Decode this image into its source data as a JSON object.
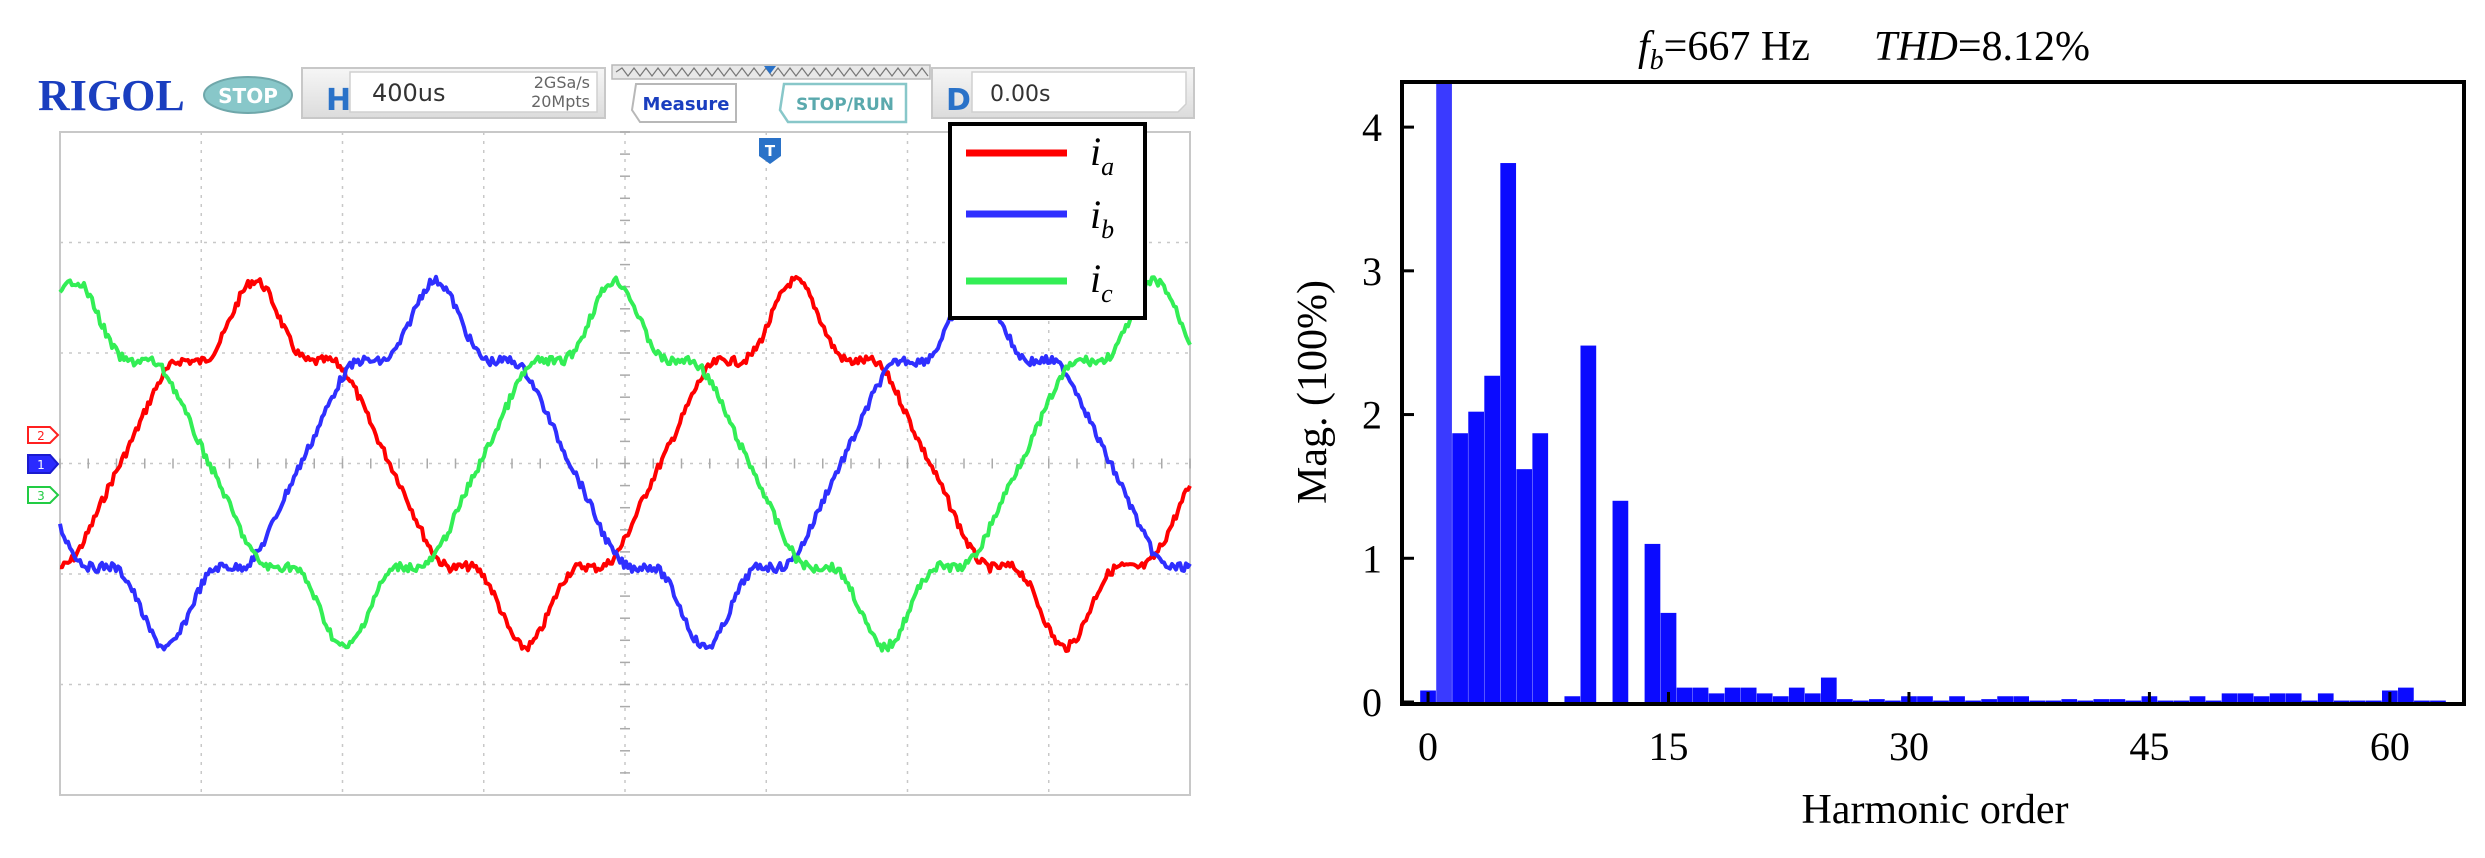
{
  "scope": {
    "brand": "RIGOL",
    "run_state": "STOP",
    "h_label": "H",
    "timebase": "400us",
    "sample_rate": "2GSa/s",
    "memory_depth": "20Mpts",
    "measure_label": "Measure",
    "stoprun_label": "STOP/RUN",
    "d_label": "D",
    "delay": "0.00s",
    "trigger_marker": "T",
    "channel_markers": [
      "2",
      "1",
      "3"
    ],
    "legend": [
      {
        "name": "i",
        "sub": "a",
        "color": "#ff0000"
      },
      {
        "name": "i",
        "sub": "b",
        "color": "#2f2fff"
      },
      {
        "name": "i",
        "sub": "c",
        "color": "#33ee55"
      }
    ],
    "colors": {
      "brand": "#1a3ebf",
      "grid": "#c8c8c8",
      "panel": "#e6e6e6",
      "accent": "#2a72c8"
    }
  },
  "chart_data": {
    "type": "bar",
    "title_f": "f",
    "title_f_sub": "b",
    "title_f_value": "=667 Hz",
    "title_thd": "THD",
    "title_thd_value": "=8.12%",
    "xlabel": "Harmonic order",
    "ylabel": "Mag. (100%)",
    "xlim": [
      -1.5,
      64.5
    ],
    "ylim": [
      0,
      4.3
    ],
    "xticks": [
      0,
      15,
      30,
      45,
      60
    ],
    "yticks": [
      0,
      1,
      2,
      3,
      4
    ],
    "bar_color": "#0b0bff",
    "harmonics": [
      0,
      1,
      2,
      3,
      4,
      5,
      6,
      7,
      8,
      9,
      10,
      11,
      12,
      13,
      14,
      15,
      16,
      17,
      18,
      19,
      20,
      21,
      22,
      23,
      24,
      25,
      26,
      27,
      28,
      29,
      30,
      31,
      32,
      33,
      34,
      35,
      36,
      37,
      38,
      39,
      40,
      41,
      42,
      43,
      44,
      45,
      46,
      47,
      48,
      49,
      50,
      51,
      52,
      53,
      54,
      55,
      56,
      57,
      58,
      59,
      60,
      61,
      62,
      63
    ],
    "values": [
      0.08,
      4.3,
      1.87,
      2.02,
      2.27,
      3.75,
      1.62,
      1.87,
      0,
      0.04,
      2.48,
      0,
      1.4,
      0,
      1.1,
      0.62,
      0.1,
      0.1,
      0.06,
      0.1,
      0.1,
      0.06,
      0.04,
      0.1,
      0.06,
      0.17,
      0.02,
      0.01,
      0.02,
      0.01,
      0.04,
      0.04,
      0.01,
      0.04,
      0.01,
      0.02,
      0.04,
      0.04,
      0.01,
      0.01,
      0.02,
      0.01,
      0.02,
      0.02,
      0.01,
      0.04,
      0.01,
      0.01,
      0.04,
      0.01,
      0.06,
      0.06,
      0.04,
      0.06,
      0.06,
      0.01,
      0.06,
      0.01,
      0.01,
      0.01,
      0.08,
      0.1,
      0.01,
      0.01
    ],
    "highlight_index": 1,
    "highlight_color": "#3a3aff"
  }
}
